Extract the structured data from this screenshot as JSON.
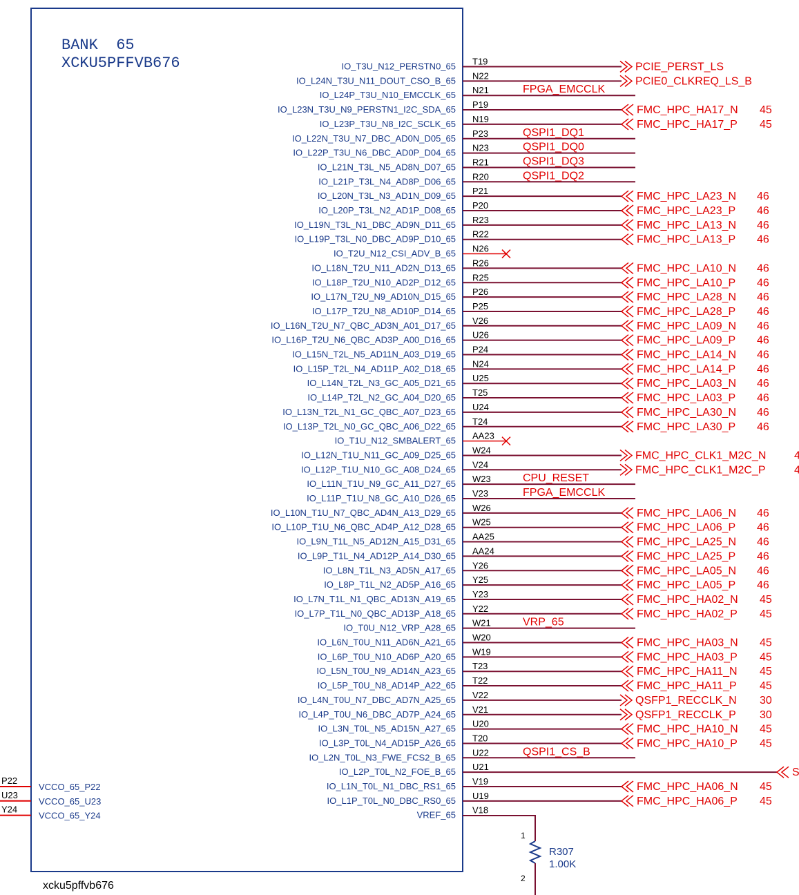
{
  "component": {
    "bank_label": "BANK  65",
    "device_label": "XCKU5PFFVB676",
    "part_footer": "xcku5pffvb676"
  },
  "colors": {
    "body_border": "#1a3a8a",
    "pin_text": "#1a3a8a",
    "wire": "#7a1030",
    "net_text": "#e00000",
    "marker": "#e00000"
  },
  "pins": [
    {
      "name": "IO_T3U_N12_PERSTN0_65",
      "ball": "T19",
      "net": "PCIE_PERST_LS",
      "kind": "out",
      "num": ""
    },
    {
      "name": "IO_L24N_T3U_N11_DOUT_CSO_B_65",
      "ball": "N22",
      "net": "PCIE0_CLKREQ_LS_B",
      "kind": "out",
      "num": ""
    },
    {
      "name": "IO_L24P_T3U_N10_EMCCLK_65",
      "ball": "N21",
      "net": "FPGA_EMCCLK",
      "kind": "wire",
      "num": ""
    },
    {
      "name": "IO_L23N_T3U_N9_PERSTN1_I2C_SDA_65",
      "ball": "P19",
      "net": "FMC_HPC_HA17_N",
      "kind": "in",
      "num": "45"
    },
    {
      "name": "IO_L23P_T3U_N8_I2C_SCLK_65",
      "ball": "N19",
      "net": "FMC_HPC_HA17_P",
      "kind": "in",
      "num": "45"
    },
    {
      "name": "IO_L22N_T3U_N7_DBC_AD0N_D05_65",
      "ball": "P23",
      "net": "QSPI1_DQ1",
      "kind": "wire",
      "num": ""
    },
    {
      "name": "IO_L22P_T3U_N6_DBC_AD0P_D04_65",
      "ball": "N23",
      "net": "QSPI1_DQ0",
      "kind": "wire",
      "num": ""
    },
    {
      "name": "IO_L21N_T3L_N5_AD8N_D07_65",
      "ball": "R21",
      "net": "QSPI1_DQ3",
      "kind": "wire",
      "num": ""
    },
    {
      "name": "IO_L21P_T3L_N4_AD8P_D06_65",
      "ball": "R20",
      "net": "QSPI1_DQ2",
      "kind": "wire",
      "num": ""
    },
    {
      "name": "IO_L20N_T3L_N3_AD1N_D09_65",
      "ball": "P21",
      "net": "FMC_HPC_LA23_N",
      "kind": "in",
      "num": "46"
    },
    {
      "name": "IO_L20P_T3L_N2_AD1P_D08_65",
      "ball": "P20",
      "net": "FMC_HPC_LA23_P",
      "kind": "in",
      "num": "46"
    },
    {
      "name": "IO_L19N_T3L_N1_DBC_AD9N_D11_65",
      "ball": "R23",
      "net": "FMC_HPC_LA13_N",
      "kind": "in",
      "num": "46"
    },
    {
      "name": "IO_L19P_T3L_N0_DBC_AD9P_D10_65",
      "ball": "R22",
      "net": "FMC_HPC_LA13_P",
      "kind": "in",
      "num": "46"
    },
    {
      "name": "IO_T2U_N12_CSI_ADV_B_65",
      "ball": "N26",
      "net": "",
      "kind": "nc",
      "num": ""
    },
    {
      "name": "IO_L18N_T2U_N11_AD2N_D13_65",
      "ball": "R26",
      "net": "FMC_HPC_LA10_N",
      "kind": "in",
      "num": "46"
    },
    {
      "name": "IO_L18P_T2U_N10_AD2P_D12_65",
      "ball": "R25",
      "net": "FMC_HPC_LA10_P",
      "kind": "in",
      "num": "46"
    },
    {
      "name": "IO_L17N_T2U_N9_AD10N_D15_65",
      "ball": "P26",
      "net": "FMC_HPC_LA28_N",
      "kind": "in",
      "num": "46"
    },
    {
      "name": "IO_L17P_T2U_N8_AD10P_D14_65",
      "ball": "P25",
      "net": "FMC_HPC_LA28_P",
      "kind": "in",
      "num": "46"
    },
    {
      "name": "IO_L16N_T2U_N7_QBC_AD3N_A01_D17_65",
      "ball": "V26",
      "net": "FMC_HPC_LA09_N",
      "kind": "in",
      "num": "46"
    },
    {
      "name": "IO_L16P_T2U_N6_QBC_AD3P_A00_D16_65",
      "ball": "U26",
      "net": "FMC_HPC_LA09_P",
      "kind": "in",
      "num": "46"
    },
    {
      "name": "IO_L15N_T2L_N5_AD11N_A03_D19_65",
      "ball": "P24",
      "net": "FMC_HPC_LA14_N",
      "kind": "in",
      "num": "46"
    },
    {
      "name": "IO_L15P_T2L_N4_AD11P_A02_D18_65",
      "ball": "N24",
      "net": "FMC_HPC_LA14_P",
      "kind": "in",
      "num": "46"
    },
    {
      "name": "IO_L14N_T2L_N3_GC_A05_D21_65",
      "ball": "U25",
      "net": "FMC_HPC_LA03_N",
      "kind": "in",
      "num": "46"
    },
    {
      "name": "IO_L14P_T2L_N2_GC_A04_D20_65",
      "ball": "T25",
      "net": "FMC_HPC_LA03_P",
      "kind": "in",
      "num": "46"
    },
    {
      "name": "IO_L13N_T2L_N1_GC_QBC_A07_D23_65",
      "ball": "U24",
      "net": "FMC_HPC_LA30_N",
      "kind": "in",
      "num": "46"
    },
    {
      "name": "IO_L13P_T2L_N0_GC_QBC_A06_D22_65",
      "ball": "T24",
      "net": "FMC_HPC_LA30_P",
      "kind": "in",
      "num": "46"
    },
    {
      "name": "IO_T1U_N12_SMBALERT_65",
      "ball": "AA23",
      "net": "",
      "kind": "nc",
      "num": ""
    },
    {
      "name": "IO_L12N_T1U_N11_GC_A09_D25_65",
      "ball": "W24",
      "net": "FMC_HPC_CLK1_M2C_N",
      "kind": "out",
      "num": "4"
    },
    {
      "name": "IO_L12P_T1U_N10_GC_A08_D24_65",
      "ball": "V24",
      "net": "FMC_HPC_CLK1_M2C_P",
      "kind": "out",
      "num": "4"
    },
    {
      "name": "IO_L11N_T1U_N9_GC_A11_D27_65",
      "ball": "W23",
      "net": "CPU_RESET",
      "kind": "wire",
      "num": ""
    },
    {
      "name": "IO_L11P_T1U_N8_GC_A10_D26_65",
      "ball": "V23",
      "net": "FPGA_EMCCLK",
      "kind": "wire",
      "num": ""
    },
    {
      "name": "IO_L10N_T1U_N7_QBC_AD4N_A13_D29_65",
      "ball": "W26",
      "net": "FMC_HPC_LA06_N",
      "kind": "in",
      "num": "46"
    },
    {
      "name": "IO_L10P_T1U_N6_QBC_AD4P_A12_D28_65",
      "ball": "W25",
      "net": "FMC_HPC_LA06_P",
      "kind": "in",
      "num": "46"
    },
    {
      "name": "IO_L9N_T1L_N5_AD12N_A15_D31_65",
      "ball": "AA25",
      "net": "FMC_HPC_LA25_N",
      "kind": "in",
      "num": "46"
    },
    {
      "name": "IO_L9P_T1L_N4_AD12P_A14_D30_65",
      "ball": "AA24",
      "net": "FMC_HPC_LA25_P",
      "kind": "in",
      "num": "46"
    },
    {
      "name": "IO_L8N_T1L_N3_AD5N_A17_65",
      "ball": "Y26",
      "net": "FMC_HPC_LA05_N",
      "kind": "in",
      "num": "46"
    },
    {
      "name": "IO_L8P_T1L_N2_AD5P_A16_65",
      "ball": "Y25",
      "net": "FMC_HPC_LA05_P",
      "kind": "in",
      "num": "46"
    },
    {
      "name": "IO_L7N_T1L_N1_QBC_AD13N_A19_65",
      "ball": "Y23",
      "net": "FMC_HPC_HA02_N",
      "kind": "in",
      "num": "45"
    },
    {
      "name": "IO_L7P_T1L_N0_QBC_AD13P_A18_65",
      "ball": "Y22",
      "net": "FMC_HPC_HA02_P",
      "kind": "in",
      "num": "45"
    },
    {
      "name": "IO_T0U_N12_VRP_A28_65",
      "ball": "W21",
      "net": "VRP_65",
      "kind": "wire",
      "num": ""
    },
    {
      "name": "IO_L6N_T0U_N11_AD6N_A21_65",
      "ball": "W20",
      "net": "FMC_HPC_HA03_N",
      "kind": "in",
      "num": "45"
    },
    {
      "name": "IO_L6P_T0U_N10_AD6P_A20_65",
      "ball": "W19",
      "net": "FMC_HPC_HA03_P",
      "kind": "in",
      "num": "45"
    },
    {
      "name": "IO_L5N_T0U_N9_AD14N_A23_65",
      "ball": "T23",
      "net": "FMC_HPC_HA11_N",
      "kind": "in",
      "num": "45"
    },
    {
      "name": "IO_L5P_T0U_N8_AD14P_A22_65",
      "ball": "T22",
      "net": "FMC_HPC_HA11_P",
      "kind": "in",
      "num": "45"
    },
    {
      "name": "IO_L4N_T0U_N7_DBC_AD7N_A25_65",
      "ball": "V22",
      "net": "QSFP1_RECCLK_N",
      "kind": "out",
      "num": "30"
    },
    {
      "name": "IO_L4P_T0U_N6_DBC_AD7P_A24_65",
      "ball": "V21",
      "net": "QSFP1_RECCLK_P",
      "kind": "out",
      "num": "30"
    },
    {
      "name": "IO_L3N_T0L_N5_AD15N_A27_65",
      "ball": "U20",
      "net": "FMC_HPC_HA10_N",
      "kind": "in",
      "num": "45"
    },
    {
      "name": "IO_L3P_T0L_N4_AD15P_A26_65",
      "ball": "T20",
      "net": "FMC_HPC_HA10_P",
      "kind": "in",
      "num": "45"
    },
    {
      "name": "IO_L2N_T0L_N3_FWE_FCS2_B_65",
      "ball": "U22",
      "net": "QSPI1_CS_B",
      "kind": "wire",
      "num": ""
    },
    {
      "name": "IO_L2P_T0L_N2_FOE_B_65",
      "ball": "U21",
      "net": "S",
      "kind": "far",
      "num": ""
    },
    {
      "name": "IO_L1N_T0L_N1_DBC_RS1_65",
      "ball": "V19",
      "net": "FMC_HPC_HA06_N",
      "kind": "in",
      "num": "45"
    },
    {
      "name": "IO_L1P_T0L_N0_DBC_RS0_65",
      "ball": "U19",
      "net": "FMC_HPC_HA06_P",
      "kind": "in",
      "num": "45"
    },
    {
      "name": "VREF_65",
      "ball": "V18",
      "net": "",
      "kind": "vref",
      "num": ""
    }
  ],
  "vcco": [
    {
      "name": "VCCO_65_P22",
      "ball": "P22"
    },
    {
      "name": "VCCO_65_U23",
      "ball": "U23"
    },
    {
      "name": "VCCO_65_Y24",
      "ball": "Y24"
    }
  ],
  "resistor": {
    "ref": "R307",
    "value": "1.00K",
    "pin1": "1",
    "pin2": "2"
  }
}
